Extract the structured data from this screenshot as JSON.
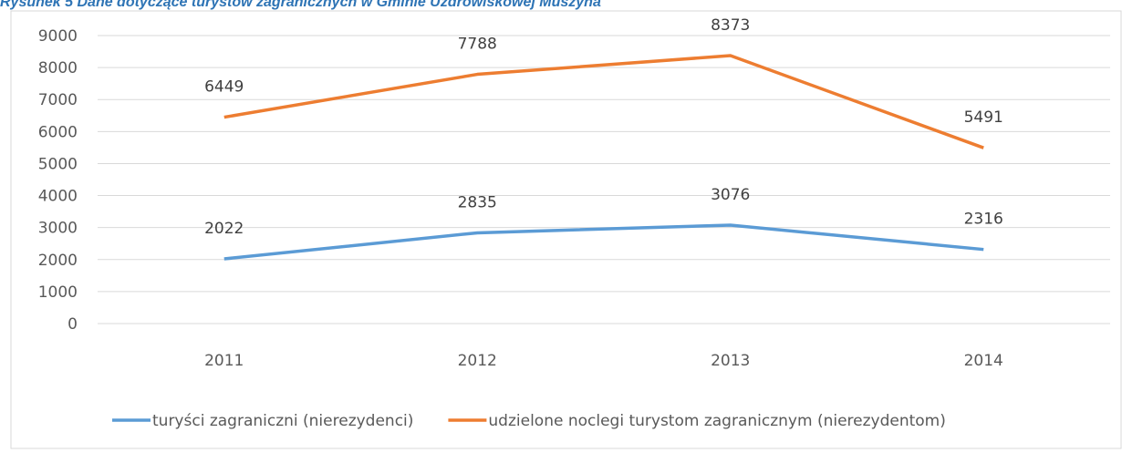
{
  "chart_data": {
    "type": "line",
    "title": "Rysunek 5 Dane dotyczące turystów zagranicznych w Gminie Uzdrowiskowej Muszyna",
    "categories": [
      "2011",
      "2012",
      "2013",
      "2014"
    ],
    "series": [
      {
        "name": "turyści zagraniczni (nierezydenci)",
        "color": "#5b9bd5",
        "values": [
          2022,
          2835,
          3076,
          2316
        ]
      },
      {
        "name": "udzielone noclegi turystom zagranicznym (nierezydentom)",
        "color": "#ed7d31",
        "values": [
          6449,
          7788,
          8373,
          5491
        ]
      }
    ],
    "ylim": [
      0,
      9000
    ],
    "yticks": [
      0,
      1000,
      2000,
      3000,
      4000,
      5000,
      6000,
      7000,
      8000,
      9000
    ],
    "grid": true,
    "legend": "bottom"
  }
}
